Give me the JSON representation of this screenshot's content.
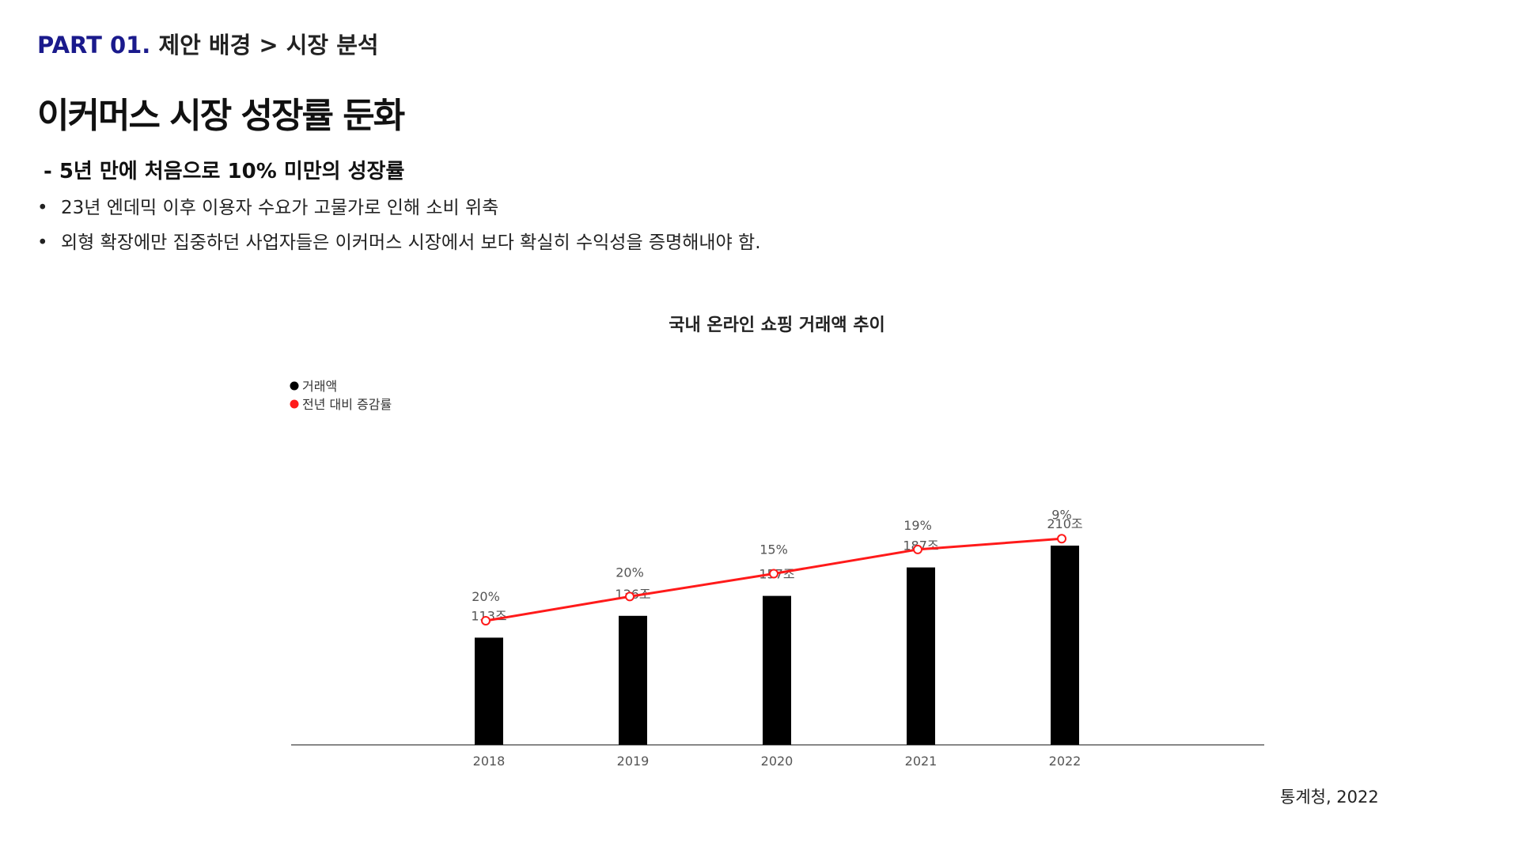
{
  "header": {
    "part_label": "PART 01.",
    "breadcrumb_path": "제안 배경 > 시장 분석",
    "title": "이커머스 시장  성장률 둔화",
    "subhead": "-  5년 만에 처음으로 10% 미만의 성장률",
    "bullet_marker": "•",
    "bullets": [
      "23년 엔데믹 이후 이용자 수요가 고물가로 인해 소비 위축",
      "외형 확장에만 집중하던 사업자들은 이커머스 시장에서 보다 확실히 수익성을 증명해내야 함."
    ]
  },
  "colors": {
    "part_label": "#1a1a8c",
    "bar": "#000000",
    "line": "#ff1a1a",
    "axis": "#888888"
  },
  "chart_data": {
    "type": "bar",
    "title": "국내 온라인 쇼핑 거래액 추이",
    "legend_position": "top-left",
    "categories": [
      "2018",
      "2019",
      "2020",
      "2021",
      "2022"
    ],
    "series": [
      {
        "name": "거래액",
        "type": "bar",
        "values": [
          113,
          136,
          157,
          187,
          210
        ],
        "labels": [
          "113조",
          "136조",
          "157조",
          "187조",
          "210조"
        ]
      },
      {
        "name": "전년 대비 증감률",
        "type": "line",
        "values": [
          20,
          20,
          15,
          19,
          9
        ],
        "labels": [
          "20%",
          "20%",
          "15%",
          "19%",
          "9%"
        ]
      }
    ],
    "grid": false
  },
  "source": "통계청, 2022"
}
